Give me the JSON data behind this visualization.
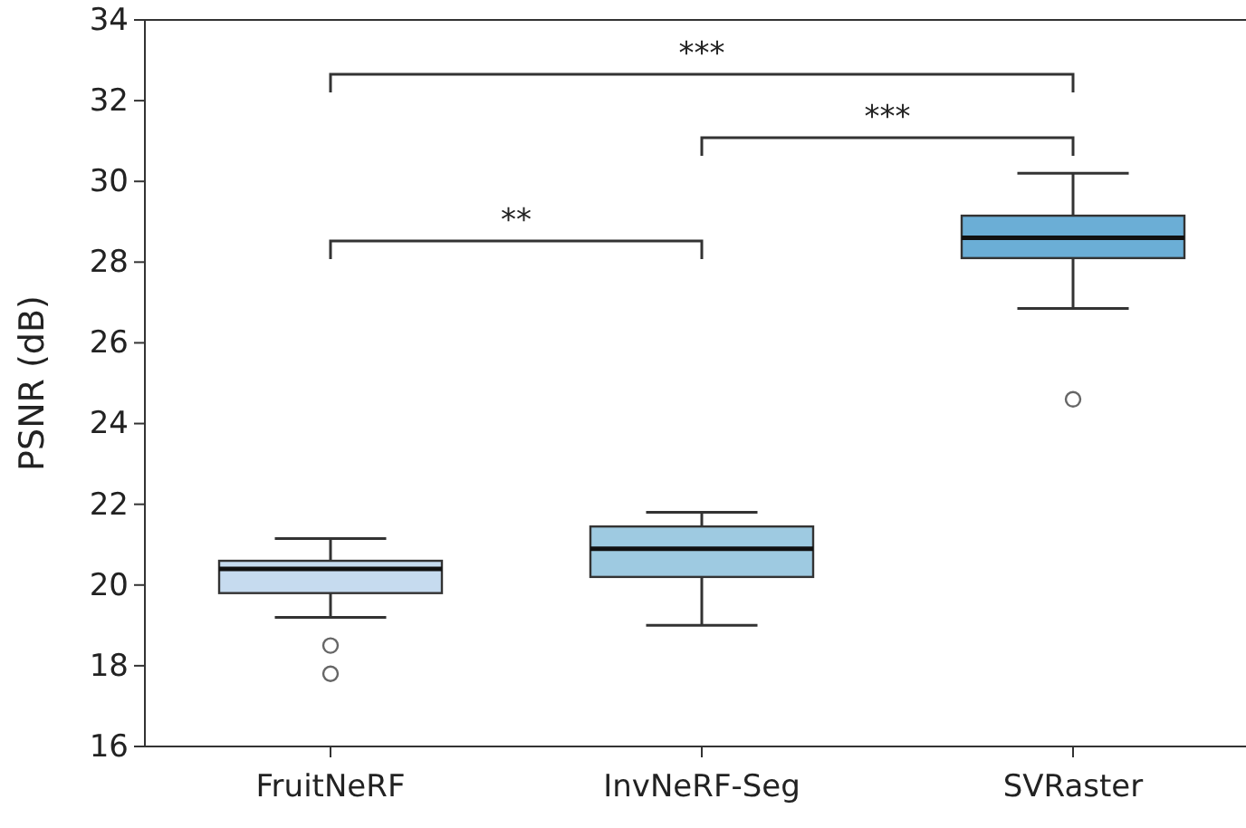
{
  "chart_data": {
    "type": "box",
    "ylabel": "PSNR (dB)",
    "categories": [
      "FruitNeRF",
      "InvNeRF-Seg",
      "SVRaster"
    ],
    "colors": [
      "#c6dbef",
      "#9ecae1",
      "#6baed6"
    ],
    "boxes": [
      {
        "low": 19.2,
        "q1": 19.8,
        "median": 20.4,
        "q3": 20.6,
        "high": 21.15,
        "outliers": [
          18.5,
          17.8
        ]
      },
      {
        "low": 19.0,
        "q1": 20.2,
        "median": 20.9,
        "q3": 21.45,
        "high": 21.8
      },
      {
        "low": 26.85,
        "q1": 28.1,
        "median": 28.6,
        "q3": 29.15,
        "high": 30.2,
        "outliers": [
          24.6
        ]
      }
    ],
    "ylim": [
      16,
      34
    ],
    "yticks": [
      16,
      18,
      20,
      22,
      24,
      26,
      28,
      30,
      32,
      34
    ],
    "annotations": [
      "***",
      "***",
      "**"
    ]
  }
}
